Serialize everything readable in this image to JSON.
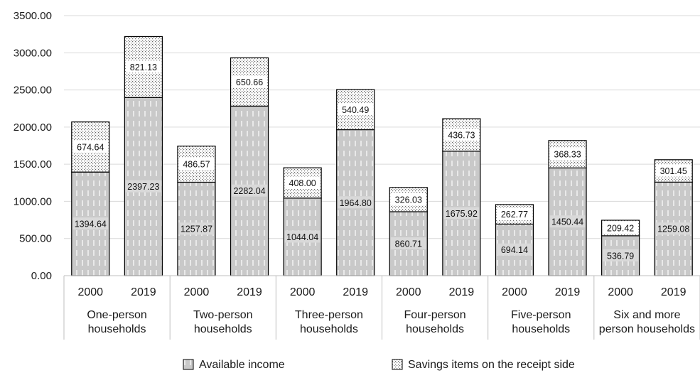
{
  "chart_data": {
    "type": "bar",
    "stacked": true,
    "title": "",
    "xlabel": "",
    "ylabel": "",
    "ylim": [
      0,
      3500
    ],
    "yticks": [
      "0.00",
      "500.00",
      "1000.00",
      "1500.00",
      "2000.00",
      "2500.00",
      "3000.00",
      "3500.00"
    ],
    "grid": true,
    "legend_position": "bottom",
    "groups": [
      {
        "label": "One-person households",
        "label_lines": [
          "One-person",
          "households"
        ]
      },
      {
        "label": "Two-person households",
        "label_lines": [
          "Two-person",
          "households"
        ]
      },
      {
        "label": "Three-person households",
        "label_lines": [
          "Three-person",
          "households"
        ]
      },
      {
        "label": "Four-person households",
        "label_lines": [
          "Four-person",
          "households"
        ]
      },
      {
        "label": "Five-person households",
        "label_lines": [
          "Five-person",
          "households"
        ]
      },
      {
        "label": "Six and more person households",
        "label_lines": [
          "Six and more",
          "person households"
        ]
      }
    ],
    "categories": [
      "2000",
      "2019",
      "2000",
      "2019",
      "2000",
      "2019",
      "2000",
      "2019",
      "2000",
      "2019",
      "2000",
      "2019"
    ],
    "series": [
      {
        "name": "Available income",
        "color": "#d9d9d9",
        "values": [
          1394.64,
          2397.23,
          1257.87,
          2282.04,
          1044.04,
          1964.8,
          860.71,
          1675.92,
          694.14,
          1450.44,
          536.79,
          1259.08
        ],
        "labels": [
          "1394.64",
          "2397.23",
          "1257.87",
          "2282.04",
          "1044.04",
          "1964.80",
          "860.71",
          "1675.92",
          "694.14",
          "1450.44",
          "536.79",
          "1259.08"
        ]
      },
      {
        "name": "Savings items on the receipt side",
        "color": "#f2f2f2",
        "values": [
          674.64,
          821.13,
          486.57,
          650.66,
          408.0,
          540.49,
          326.03,
          436.73,
          262.77,
          368.33,
          209.42,
          301.45
        ],
        "labels": [
          "674.64",
          "821.13",
          "486.57",
          "650.66",
          "408.00",
          "540.49",
          "326.03",
          "436.73",
          "262.77",
          "368.33",
          "209.42",
          "301.45"
        ]
      }
    ]
  },
  "legend": {
    "items": [
      {
        "label": "Available income",
        "icon": "dashed-gray-swatch"
      },
      {
        "label": "Savings items on the receipt side",
        "icon": "dotted-swatch"
      }
    ]
  }
}
